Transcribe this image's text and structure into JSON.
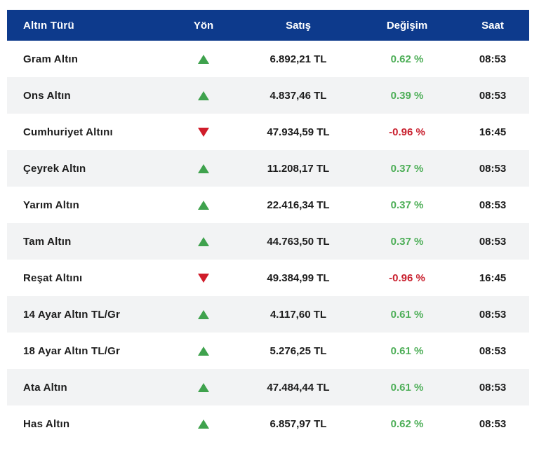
{
  "colors": {
    "header_bg": "#0d3a8c",
    "header_text": "#ffffff",
    "row_alt_bg": "#f2f3f4",
    "row_text": "#1c1c1c",
    "up_green": "#3fa24d",
    "up_text_green": "#4dae57",
    "down_red": "#d01c2a",
    "down_text_red": "#c9202e"
  },
  "table": {
    "headers": {
      "type": "Altın Türü",
      "direction": "Yön",
      "price": "Satış",
      "change": "Değişim",
      "time": "Saat"
    },
    "rows": [
      {
        "name": "Gram Altın",
        "direction": "up",
        "price": "6.892,21 TL",
        "change": "0.62 %",
        "time": "08:53"
      },
      {
        "name": "Ons Altın",
        "direction": "up",
        "price": "4.837,46 TL",
        "change": "0.39 %",
        "time": "08:53"
      },
      {
        "name": "Cumhuriyet Altını",
        "direction": "down",
        "price": "47.934,59 TL",
        "change": "-0.96 %",
        "time": "16:45"
      },
      {
        "name": "Çeyrek Altın",
        "direction": "up",
        "price": "11.208,17 TL",
        "change": "0.37 %",
        "time": "08:53"
      },
      {
        "name": "Yarım Altın",
        "direction": "up",
        "price": "22.416,34 TL",
        "change": "0.37 %",
        "time": "08:53"
      },
      {
        "name": "Tam Altın",
        "direction": "up",
        "price": "44.763,50 TL",
        "change": "0.37 %",
        "time": "08:53"
      },
      {
        "name": "Reşat Altını",
        "direction": "down",
        "price": "49.384,99 TL",
        "change": "-0.96 %",
        "time": "16:45"
      },
      {
        "name": "14 Ayar Altın TL/Gr",
        "direction": "up",
        "price": "4.117,60 TL",
        "change": "0.61 %",
        "time": "08:53"
      },
      {
        "name": "18 Ayar Altın TL/Gr",
        "direction": "up",
        "price": "5.276,25 TL",
        "change": "0.61 %",
        "time": "08:53"
      },
      {
        "name": "Ata Altın",
        "direction": "up",
        "price": "47.484,44 TL",
        "change": "0.61 %",
        "time": "08:53"
      },
      {
        "name": "Has Altın",
        "direction": "up",
        "price": "6.857,97 TL",
        "change": "0.62 %",
        "time": "08:53"
      }
    ]
  }
}
